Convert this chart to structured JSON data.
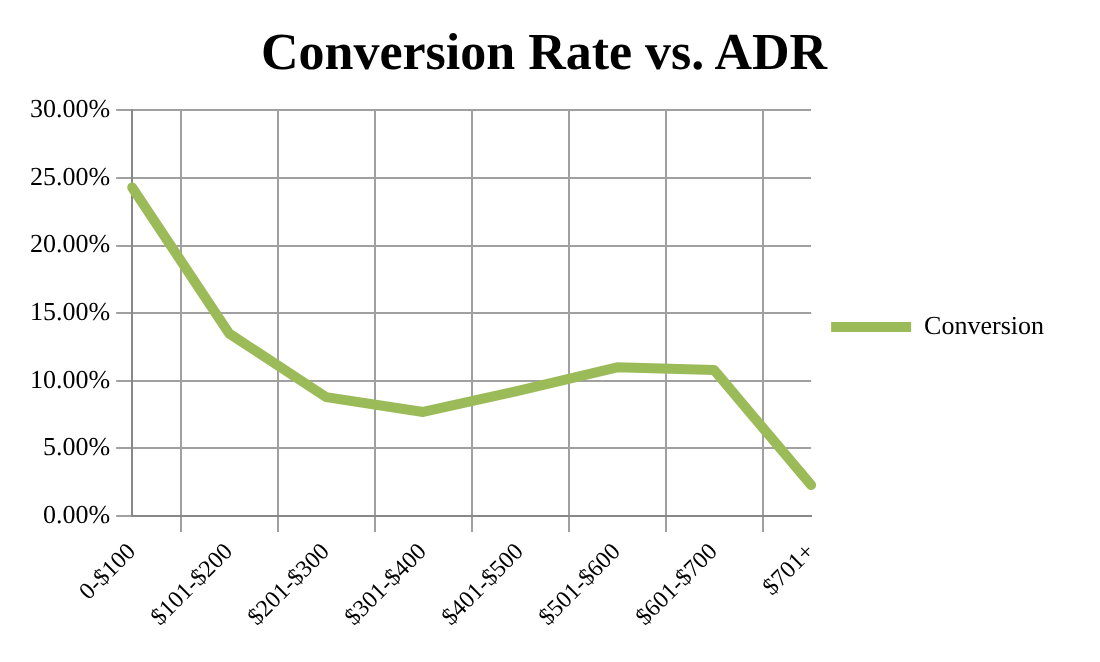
{
  "chart_data": {
    "type": "line",
    "title": "Conversion Rate vs. ADR",
    "categories": [
      "0-$100",
      "$101-$200",
      "$201-$300",
      "$301-$400",
      "$401-$500",
      "$501-$600",
      "$601-$700",
      "$701+"
    ],
    "series": [
      {
        "name": "Conversion",
        "color": "#9bbb59",
        "values": [
          24.3,
          13.5,
          8.8,
          7.7,
          9.3,
          11.0,
          10.8,
          2.3
        ]
      }
    ],
    "ylim": [
      0,
      30
    ],
    "yticks": [
      {
        "value": 0,
        "label": "0.00%"
      },
      {
        "value": 5,
        "label": "5.00%"
      },
      {
        "value": 10,
        "label": "10.00%"
      },
      {
        "value": 15,
        "label": "15.00%"
      },
      {
        "value": 20,
        "label": "20.00%"
      },
      {
        "value": 25,
        "label": "25.00%"
      },
      {
        "value": 30,
        "label": "30.00%"
      }
    ],
    "grid": true,
    "legend": "right",
    "marker": "none",
    "line_style": "solid"
  }
}
